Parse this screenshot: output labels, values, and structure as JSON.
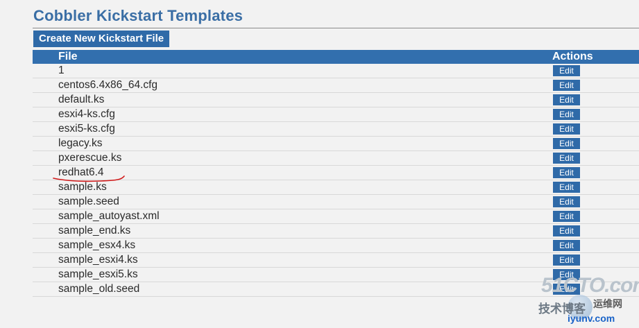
{
  "header": {
    "title": "Cobbler Kickstart Templates",
    "create_button_label": "Create New Kickstart File"
  },
  "table": {
    "columns": {
      "file": "File",
      "actions": "Actions"
    },
    "edit_label": "Edit",
    "rows": [
      {
        "file": "1"
      },
      {
        "file": "centos6.4x86_64.cfg"
      },
      {
        "file": "default.ks"
      },
      {
        "file": "esxi4-ks.cfg"
      },
      {
        "file": "esxi5-ks.cfg"
      },
      {
        "file": "legacy.ks"
      },
      {
        "file": "pxerescue.ks"
      },
      {
        "file": "redhat6.4"
      },
      {
        "file": "sample.ks"
      },
      {
        "file": "sample.seed"
      },
      {
        "file": "sample_autoyast.xml"
      },
      {
        "file": "sample_end.ks"
      },
      {
        "file": "sample_esx4.ks"
      },
      {
        "file": "sample_esxi4.ks"
      },
      {
        "file": "sample_esxi5.ks"
      },
      {
        "file": "sample_old.seed"
      }
    ]
  },
  "watermark": {
    "brand": "51CTO.com",
    "line1": "技术博客",
    "line2": "运维网",
    "url": "iyunv.com"
  },
  "colors": {
    "accent": "#326fae",
    "title": "#3a6ea5",
    "annotation": "#d11a1a"
  }
}
